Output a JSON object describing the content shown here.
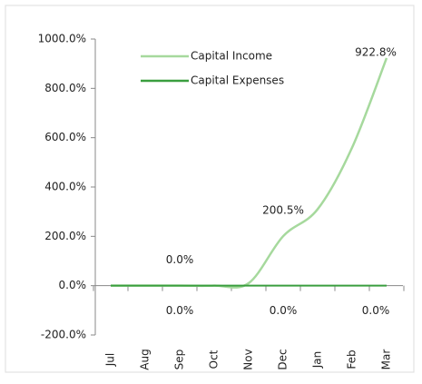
{
  "chart_data": {
    "type": "line",
    "categories": [
      "Jul",
      "Aug",
      "Sep",
      "Oct",
      "Nov",
      "Dec",
      "Jan",
      "Feb",
      "Mar"
    ],
    "series": [
      {
        "name": "Capital Income",
        "color": "#a6d99d",
        "values": [
          0,
          0,
          0,
          0,
          10,
          200.5,
          310,
          560,
          922.8
        ],
        "value_labels": [
          null,
          null,
          "0.0%",
          null,
          null,
          "200.5%",
          null,
          null,
          "922.8%"
        ]
      },
      {
        "name": "Capital Expenses",
        "color": "#3a9e3f",
        "values": [
          0,
          0,
          0,
          0,
          0,
          0,
          0,
          0,
          0
        ],
        "value_labels": [
          null,
          null,
          "0.0%",
          null,
          null,
          "0.0%",
          null,
          null,
          "0.0%"
        ]
      }
    ],
    "ylim": [
      -200,
      1000
    ],
    "yticks": [
      {
        "value": -200,
        "label": "-200.0%"
      },
      {
        "value": 0,
        "label": "0.0%"
      },
      {
        "value": 200,
        "label": "200.0%"
      },
      {
        "value": 400,
        "label": "400.0%"
      },
      {
        "value": 600,
        "label": "600.0%"
      },
      {
        "value": 800,
        "label": "800.0%"
      },
      {
        "value": 1000,
        "label": "1000.0%"
      }
    ],
    "legend": "top"
  }
}
